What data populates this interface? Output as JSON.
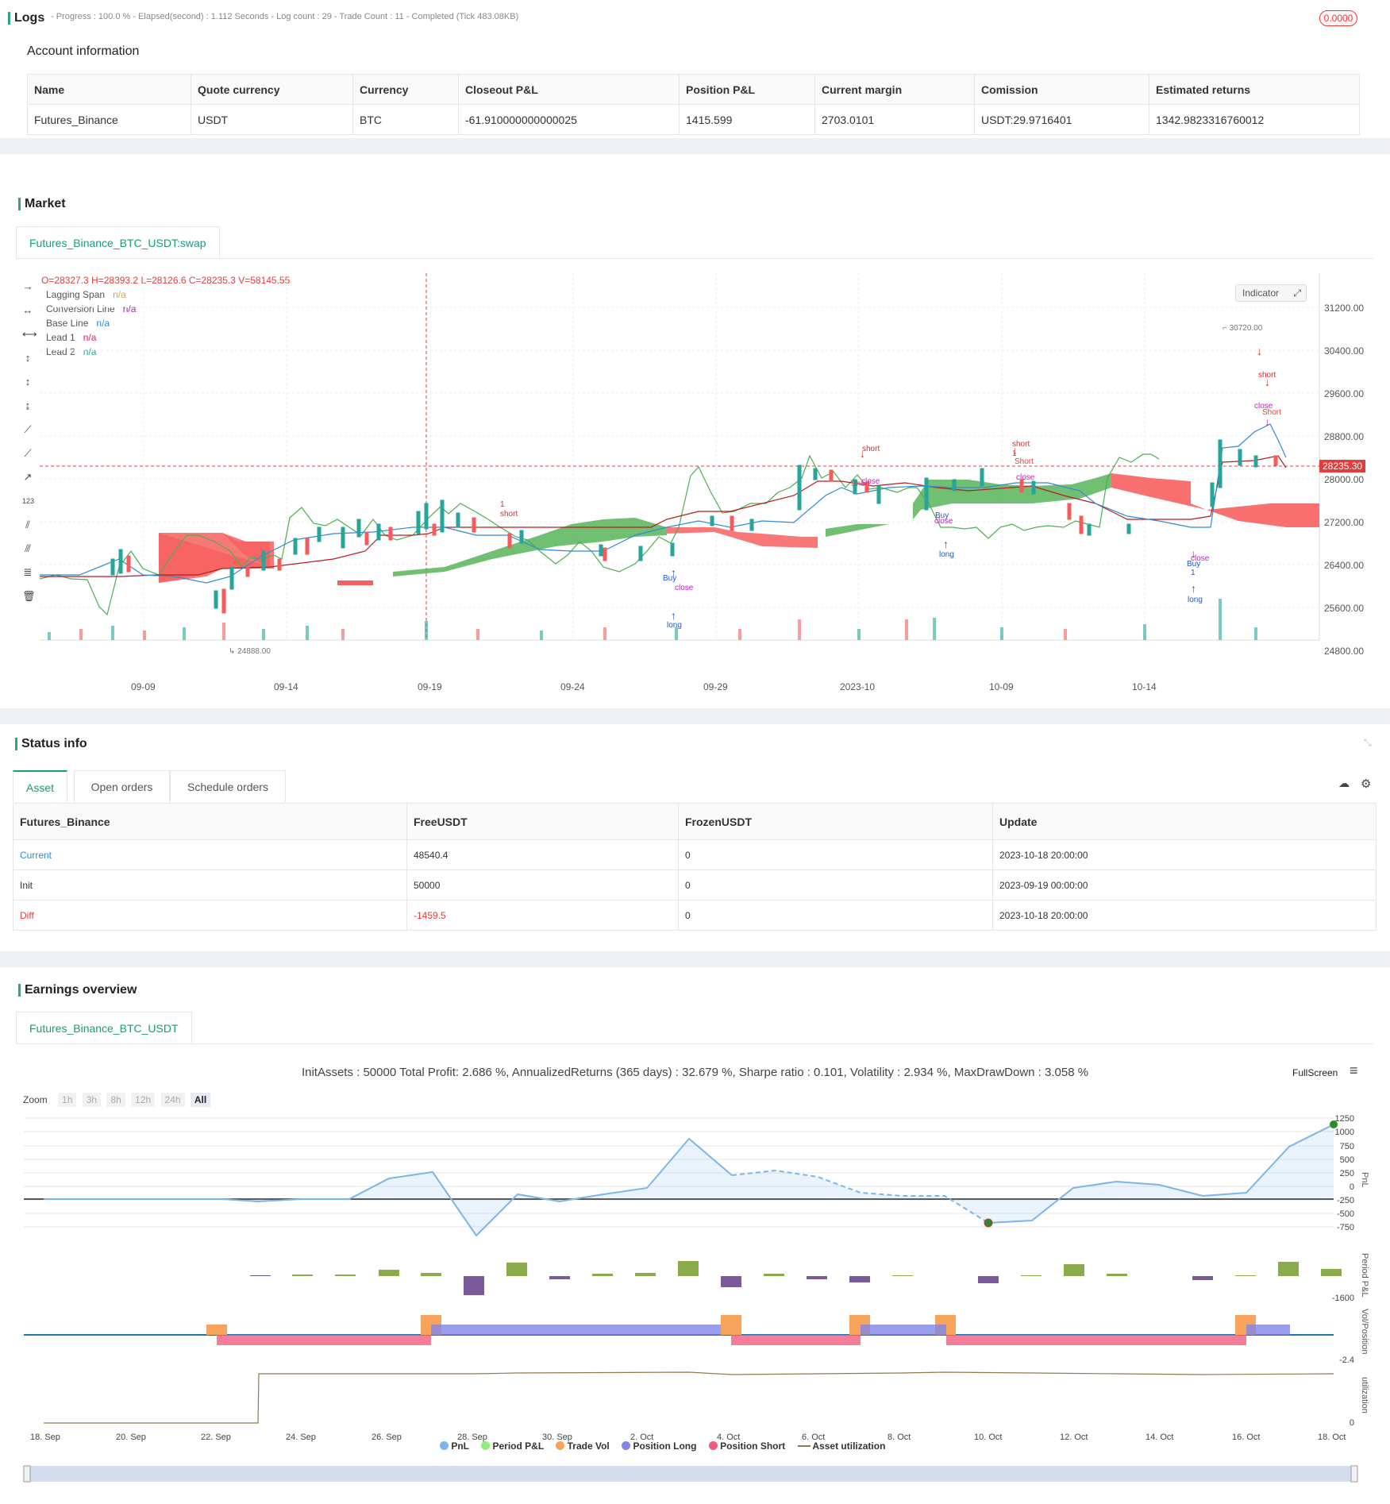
{
  "logs": {
    "title": "Logs",
    "status": "- Progress : 100.0 % - Elapsed(second) : 1.112  Seconds - Log count : 29 - Trade Count : 11 - Completed (Tick 483.08KB)",
    "badge": "0.0000"
  },
  "account": {
    "title": "Account information",
    "headers": [
      "Name",
      "Quote currency",
      "Currency",
      "Closeout P&L",
      "Position P&L",
      "Current margin",
      "Comission",
      "Estimated returns"
    ],
    "row": [
      "Futures_Binance",
      "USDT",
      "BTC",
      "-61.910000000000025",
      "1415.599",
      "2703.0101",
      "USDT:29.9716401",
      "1342.9823316760012"
    ]
  },
  "market": {
    "title": "Market",
    "tab": "Futures_Binance_BTC_USDT:swap",
    "ohlc": "O=28327.3 H=28393.2 L=28126.6 C=28235.3 V=58145.55",
    "indicator_btn": "Indicator",
    "legend": [
      {
        "name": "Lagging Span",
        "value": "n/a",
        "color": "#f0a030"
      },
      {
        "name": "Conversion Line",
        "value": "n/a",
        "color": "#9c27b0"
      },
      {
        "name": "Base Line",
        "value": "n/a",
        "color": "#2e8bd8"
      },
      {
        "name": "Lead 1",
        "value": "n/a",
        "color": "#e91e63"
      },
      {
        "name": "Lead 2",
        "value": "n/a",
        "color": "#26a69a"
      }
    ],
    "price_labels": [
      "31200.00",
      "30400.00",
      "29600.00",
      "28800.00",
      "28000.00",
      "27200.00",
      "26400.00",
      "25600.00",
      "24800.00"
    ],
    "current_price": "28235.30",
    "high_label": "30720.00",
    "low_label": "24888.00",
    "x_labels": [
      "09-09",
      "09-14",
      "09-19",
      "09-24",
      "09-29",
      "2023-10",
      "10-09",
      "10-14"
    ],
    "markers": {
      "short": "short",
      "Short": "Short",
      "close": "close",
      "long": "long",
      "Buy": "Buy",
      "one": "1"
    }
  },
  "status": {
    "title": "Status info",
    "tabs": [
      "Asset",
      "Open orders",
      "Schedule orders"
    ],
    "headers": [
      "Futures_Binance",
      "FreeUSDT",
      "FrozenUSDT",
      "Update"
    ],
    "rows": [
      [
        "Current",
        "48540.4",
        "0",
        "2023-10-18 20:00:00"
      ],
      [
        "Init",
        "50000",
        "0",
        "2023-09-19 00:00:00"
      ],
      [
        "Diff",
        "-1459.5",
        "0",
        "2023-10-18 20:00:00"
      ]
    ]
  },
  "earnings": {
    "title": "Earnings overview",
    "tab": "Futures_Binance_BTC_USDT",
    "summary": "InitAssets : 50000 Total Profit: 2.686 %, AnnualizedReturns (365 days) : 32.679 %, Sharpe ratio : 0.101, Volatility : 2.934 %, MaxDrawDown : 3.058 %",
    "fullscreen": "FullScreen",
    "zoom_label": "Zoom",
    "zoom_opts": [
      "1h",
      "3h",
      "8h",
      "12h",
      "24h",
      "All"
    ],
    "pnl_ticks": [
      "1250",
      "1000",
      "750",
      "500",
      "250",
      "0",
      "-250",
      "-500",
      "-750"
    ],
    "axis_titles": [
      "PnL",
      "Period P&L",
      "Vol/Position",
      "utilization"
    ],
    "period_tick": "-1600",
    "vol_tick": "-2.4",
    "util_tick": "0",
    "x_labels": [
      "18. Sep",
      "20. Sep",
      "22. Sep",
      "24. Sep",
      "26. Sep",
      "28. Sep",
      "30. Sep",
      "2. Oct",
      "4. Oct",
      "6. Oct",
      "8. Oct",
      "10. Oct",
      "12. Oct",
      "14. Oct",
      "16. Oct",
      "18. Oct"
    ],
    "legend": [
      {
        "name": "PnL",
        "color": "#7cb5ec"
      },
      {
        "name": "Period P&L",
        "color": "#90ed7d"
      },
      {
        "name": "Trade Vol",
        "color": "#f7a35c"
      },
      {
        "name": "Position Long",
        "color": "#8085e9"
      },
      {
        "name": "Position Short",
        "color": "#f15c80"
      },
      {
        "name": "Asset utilization",
        "color": "#8d7a4a"
      }
    ]
  }
}
